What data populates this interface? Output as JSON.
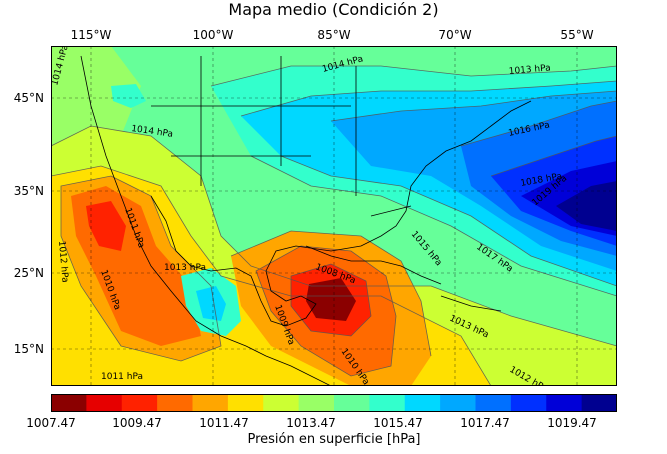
{
  "title": "Mapa medio (Condición 2)",
  "lon_labels": [
    "115°W",
    "100°W",
    "85°W",
    "70°W",
    "55°W"
  ],
  "lat_labels": [
    "45°N",
    "35°N",
    "25°N",
    "15°N"
  ],
  "contour_labels": [
    "1014 hPa",
    "1014 hPa",
    "1014 hPa",
    "1013 hPa",
    "1016 hPa",
    "1018 hPa",
    "1019 hPa",
    "1011 hPa",
    "1012 hPa",
    "1013 hPa",
    "1015 hPa",
    "1017 hPa",
    "1010 hPa",
    "1008 hPa",
    "1009 hPa",
    "1013 hPa",
    "1010 hPa",
    "1011 hPa",
    "1012 hPa"
  ],
  "colorbar": {
    "ticks": [
      "1007.47",
      "1009.47",
      "1011.47",
      "1013.47",
      "1015.47",
      "1017.47",
      "1019.47"
    ],
    "label": "Presión en superficie [hPa]",
    "colors": [
      "#8b0000",
      "#e60000",
      "#ff2200",
      "#ff6a00",
      "#ffa600",
      "#ffe000",
      "#ccff33",
      "#99ff66",
      "#66ff99",
      "#33ffcc",
      "#00d8ff",
      "#00a8ff",
      "#0070ff",
      "#0030ff",
      "#0000d8",
      "#000090"
    ]
  }
}
